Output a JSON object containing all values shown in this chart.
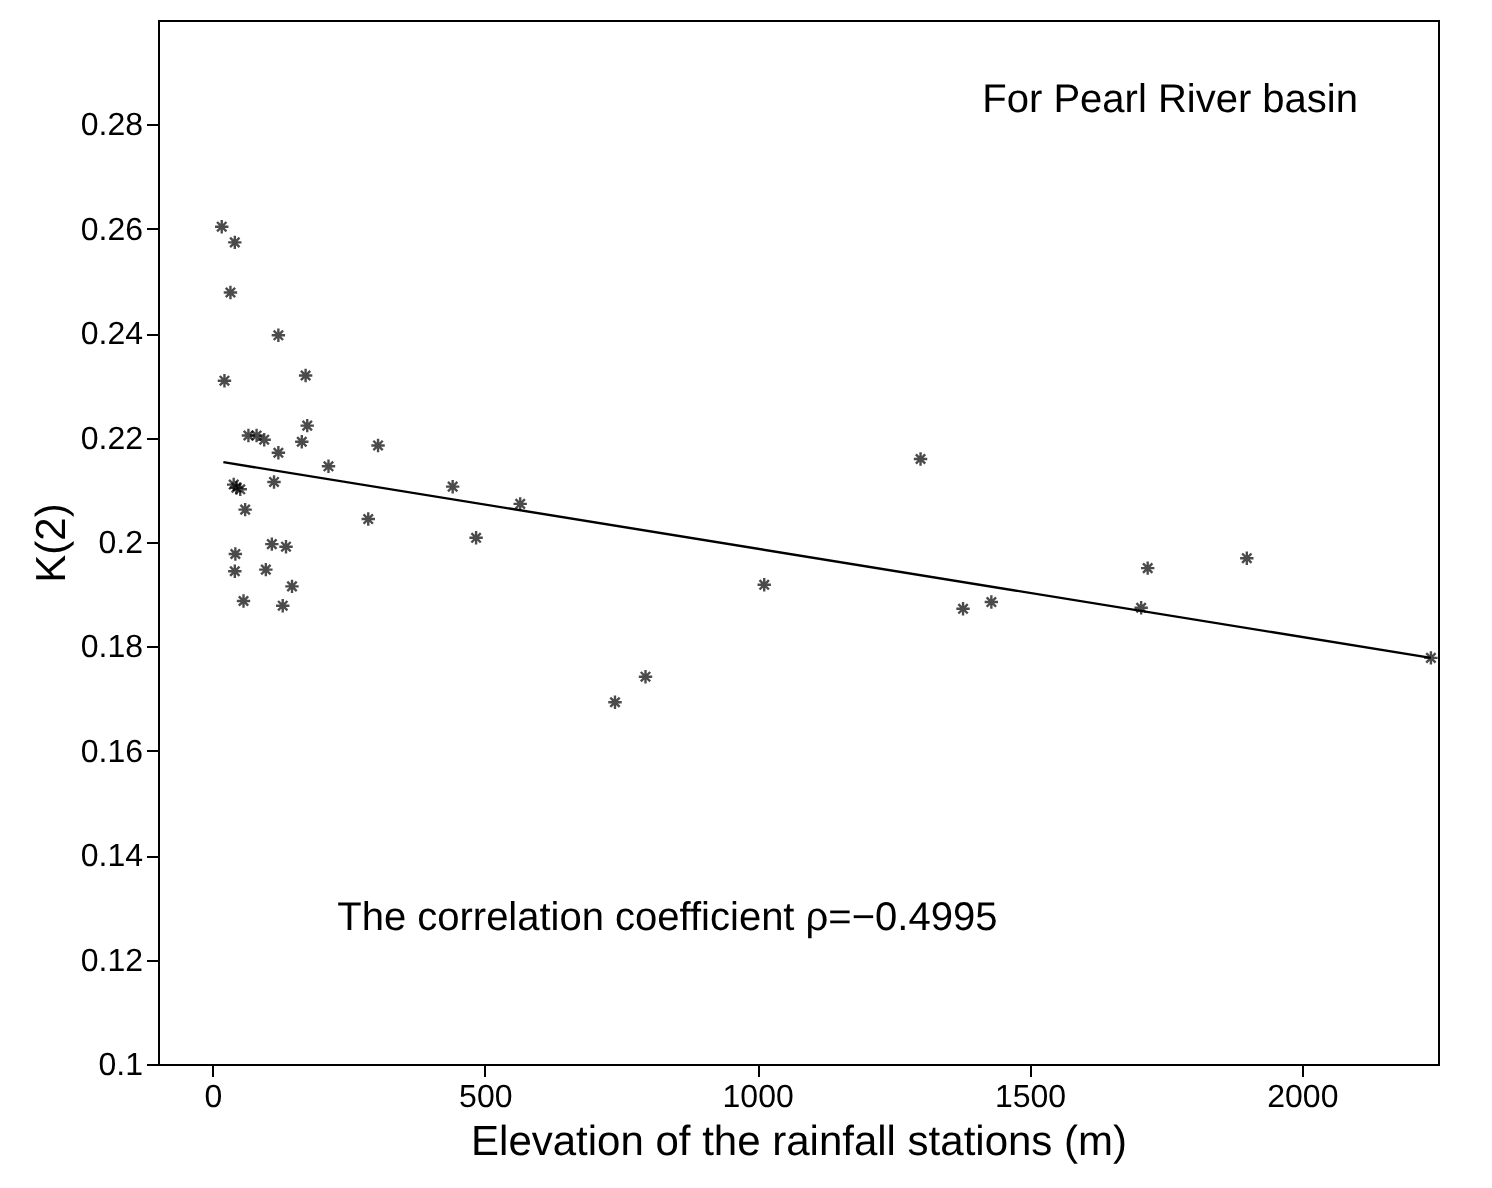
{
  "chart_data": {
    "type": "scatter",
    "xlabel": "Elevation of the rainfall stations (m)",
    "ylabel": "K(2)",
    "annotations": [
      "For Pearl River basin",
      "The correlation coefficient ρ=−0.4995"
    ],
    "xlim": [
      -100,
      2250
    ],
    "xticks": [
      0,
      500,
      1000,
      1500,
      2000
    ],
    "ylim": [
      0.1,
      0.3
    ],
    "yticks": [
      0.1,
      0.12,
      0.14,
      0.16,
      0.18,
      0.2,
      0.22,
      0.24,
      0.26,
      0.28
    ],
    "grid": false,
    "marker": "cross",
    "series": [
      {
        "color": "#000000",
        "x": [
          17,
          41,
          33,
          121,
          22,
          171,
          174,
          164,
          66,
          81,
          95,
          121,
          304,
          213,
          39,
          51,
          44,
          113,
          441,
          60,
          565,
          286,
          484,
          109,
          135,
          42,
          41,
          98,
          146,
          57,
          129,
          1300,
          1013,
          795,
          739,
          1378,
          1430,
          1717,
          1705,
          1899,
          2237
        ],
        "values": [
          0.2604,
          0.2574,
          0.2478,
          0.2396,
          0.2309,
          0.2319,
          0.2223,
          0.2192,
          0.2204,
          0.2204,
          0.2196,
          0.2171,
          0.2185,
          0.2145,
          0.211,
          0.2101,
          0.2104,
          0.2115,
          0.2106,
          0.2062,
          0.2073,
          0.2044,
          0.2008,
          0.1996,
          0.1991,
          0.1977,
          0.1944,
          0.1947,
          0.1915,
          0.1887,
          0.1878,
          0.2159,
          0.1918,
          0.1742,
          0.1693,
          0.1872,
          0.1885,
          0.195,
          0.1874,
          0.1969,
          0.1778
        ]
      },
      {
        "type": "line",
        "color": "#000000",
        "x": [
          20,
          2237
        ],
        "values": [
          0.2153,
          0.1778
        ],
        "marker": "none"
      }
    ]
  }
}
